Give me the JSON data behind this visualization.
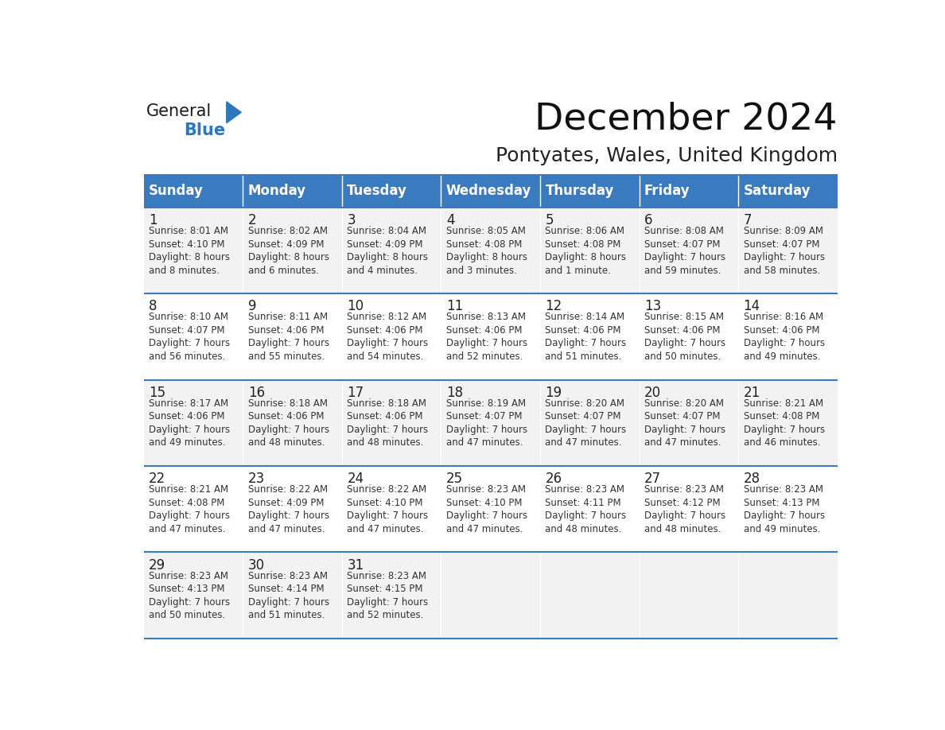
{
  "title": "December 2024",
  "subtitle": "Pontyates, Wales, United Kingdom",
  "header_color": "#3a7abf",
  "header_text_color": "#ffffff",
  "day_names": [
    "Sunday",
    "Monday",
    "Tuesday",
    "Wednesday",
    "Thursday",
    "Friday",
    "Saturday"
  ],
  "weeks": [
    [
      {
        "day": 1,
        "sunrise": "8:01 AM",
        "sunset": "4:10 PM",
        "daylight": "8 hours\nand 8 minutes."
      },
      {
        "day": 2,
        "sunrise": "8:02 AM",
        "sunset": "4:09 PM",
        "daylight": "8 hours\nand 6 minutes."
      },
      {
        "day": 3,
        "sunrise": "8:04 AM",
        "sunset": "4:09 PM",
        "daylight": "8 hours\nand 4 minutes."
      },
      {
        "day": 4,
        "sunrise": "8:05 AM",
        "sunset": "4:08 PM",
        "daylight": "8 hours\nand 3 minutes."
      },
      {
        "day": 5,
        "sunrise": "8:06 AM",
        "sunset": "4:08 PM",
        "daylight": "8 hours\nand 1 minute."
      },
      {
        "day": 6,
        "sunrise": "8:08 AM",
        "sunset": "4:07 PM",
        "daylight": "7 hours\nand 59 minutes."
      },
      {
        "day": 7,
        "sunrise": "8:09 AM",
        "sunset": "4:07 PM",
        "daylight": "7 hours\nand 58 minutes."
      }
    ],
    [
      {
        "day": 8,
        "sunrise": "8:10 AM",
        "sunset": "4:07 PM",
        "daylight": "7 hours\nand 56 minutes."
      },
      {
        "day": 9,
        "sunrise": "8:11 AM",
        "sunset": "4:06 PM",
        "daylight": "7 hours\nand 55 minutes."
      },
      {
        "day": 10,
        "sunrise": "8:12 AM",
        "sunset": "4:06 PM",
        "daylight": "7 hours\nand 54 minutes."
      },
      {
        "day": 11,
        "sunrise": "8:13 AM",
        "sunset": "4:06 PM",
        "daylight": "7 hours\nand 52 minutes."
      },
      {
        "day": 12,
        "sunrise": "8:14 AM",
        "sunset": "4:06 PM",
        "daylight": "7 hours\nand 51 minutes."
      },
      {
        "day": 13,
        "sunrise": "8:15 AM",
        "sunset": "4:06 PM",
        "daylight": "7 hours\nand 50 minutes."
      },
      {
        "day": 14,
        "sunrise": "8:16 AM",
        "sunset": "4:06 PM",
        "daylight": "7 hours\nand 49 minutes."
      }
    ],
    [
      {
        "day": 15,
        "sunrise": "8:17 AM",
        "sunset": "4:06 PM",
        "daylight": "7 hours\nand 49 minutes."
      },
      {
        "day": 16,
        "sunrise": "8:18 AM",
        "sunset": "4:06 PM",
        "daylight": "7 hours\nand 48 minutes."
      },
      {
        "day": 17,
        "sunrise": "8:18 AM",
        "sunset": "4:06 PM",
        "daylight": "7 hours\nand 48 minutes."
      },
      {
        "day": 18,
        "sunrise": "8:19 AM",
        "sunset": "4:07 PM",
        "daylight": "7 hours\nand 47 minutes."
      },
      {
        "day": 19,
        "sunrise": "8:20 AM",
        "sunset": "4:07 PM",
        "daylight": "7 hours\nand 47 minutes."
      },
      {
        "day": 20,
        "sunrise": "8:20 AM",
        "sunset": "4:07 PM",
        "daylight": "7 hours\nand 47 minutes."
      },
      {
        "day": 21,
        "sunrise": "8:21 AM",
        "sunset": "4:08 PM",
        "daylight": "7 hours\nand 46 minutes."
      }
    ],
    [
      {
        "day": 22,
        "sunrise": "8:21 AM",
        "sunset": "4:08 PM",
        "daylight": "7 hours\nand 47 minutes."
      },
      {
        "day": 23,
        "sunrise": "8:22 AM",
        "sunset": "4:09 PM",
        "daylight": "7 hours\nand 47 minutes."
      },
      {
        "day": 24,
        "sunrise": "8:22 AM",
        "sunset": "4:10 PM",
        "daylight": "7 hours\nand 47 minutes."
      },
      {
        "day": 25,
        "sunrise": "8:23 AM",
        "sunset": "4:10 PM",
        "daylight": "7 hours\nand 47 minutes."
      },
      {
        "day": 26,
        "sunrise": "8:23 AM",
        "sunset": "4:11 PM",
        "daylight": "7 hours\nand 48 minutes."
      },
      {
        "day": 27,
        "sunrise": "8:23 AM",
        "sunset": "4:12 PM",
        "daylight": "7 hours\nand 48 minutes."
      },
      {
        "day": 28,
        "sunrise": "8:23 AM",
        "sunset": "4:13 PM",
        "daylight": "7 hours\nand 49 minutes."
      }
    ],
    [
      {
        "day": 29,
        "sunrise": "8:23 AM",
        "sunset": "4:13 PM",
        "daylight": "7 hours\nand 50 minutes."
      },
      {
        "day": 30,
        "sunrise": "8:23 AM",
        "sunset": "4:14 PM",
        "daylight": "7 hours\nand 51 minutes."
      },
      {
        "day": 31,
        "sunrise": "8:23 AM",
        "sunset": "4:15 PM",
        "daylight": "7 hours\nand 52 minutes."
      },
      null,
      null,
      null,
      null
    ]
  ],
  "logo_general_color": "#1a1a1a",
  "logo_blue_color": "#2e77bc",
  "title_fontsize": 34,
  "subtitle_fontsize": 18,
  "header_fontsize": 12,
  "day_num_fontsize": 12,
  "cell_fontsize": 8.5
}
